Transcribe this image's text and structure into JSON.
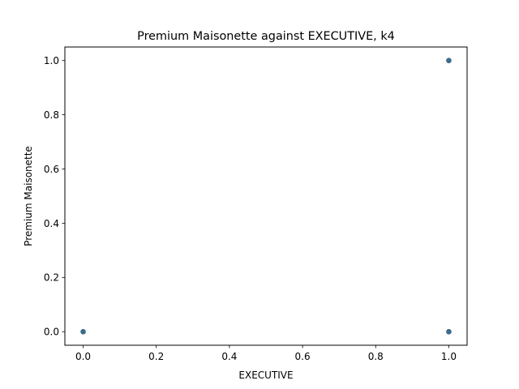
{
  "chart_data": {
    "type": "scatter",
    "title": "Premium Maisonette against EXECUTIVE, k4",
    "xlabel": "EXECUTIVE",
    "ylabel": "Premium Maisonette",
    "xlim": [
      -0.05,
      1.05
    ],
    "ylim": [
      -0.05,
      1.05
    ],
    "x_ticks": [
      {
        "value": 0.0,
        "label": "0.0"
      },
      {
        "value": 0.2,
        "label": "0.2"
      },
      {
        "value": 0.4,
        "label": "0.4"
      },
      {
        "value": 0.6,
        "label": "0.6"
      },
      {
        "value": 0.8,
        "label": "0.8"
      },
      {
        "value": 1.0,
        "label": "1.0"
      }
    ],
    "y_ticks": [
      {
        "value": 0.0,
        "label": "0.0"
      },
      {
        "value": 0.2,
        "label": "0.2"
      },
      {
        "value": 0.4,
        "label": "0.4"
      },
      {
        "value": 0.6,
        "label": "0.6"
      },
      {
        "value": 0.8,
        "label": "0.8"
      },
      {
        "value": 1.0,
        "label": "1.0"
      }
    ],
    "grid": false,
    "legend": "none",
    "marker_color": "#3a6e8f",
    "points": [
      {
        "x": 0,
        "y": 0
      },
      {
        "x": 1,
        "y": 0
      },
      {
        "x": 1,
        "y": 1
      }
    ]
  }
}
